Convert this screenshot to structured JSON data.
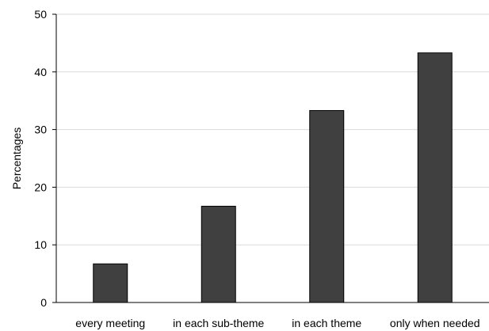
{
  "chart_data": {
    "type": "bar",
    "categories": [
      "every meeting",
      "in each sub-theme",
      "in each theme",
      "only when needed"
    ],
    "values": [
      6.7,
      16.7,
      33.3,
      43.3
    ],
    "title": "",
    "xlabel": "",
    "ylabel": "Percentages",
    "ylim": [
      0,
      50
    ],
    "yticks": [
      0,
      10,
      20,
      30,
      40,
      50
    ],
    "grid": true,
    "legend": "none",
    "colors": {
      "bar_fill": "#404040",
      "bar_stroke": "#000000",
      "grid": "#d9d9d9",
      "axis": "#000000"
    }
  }
}
